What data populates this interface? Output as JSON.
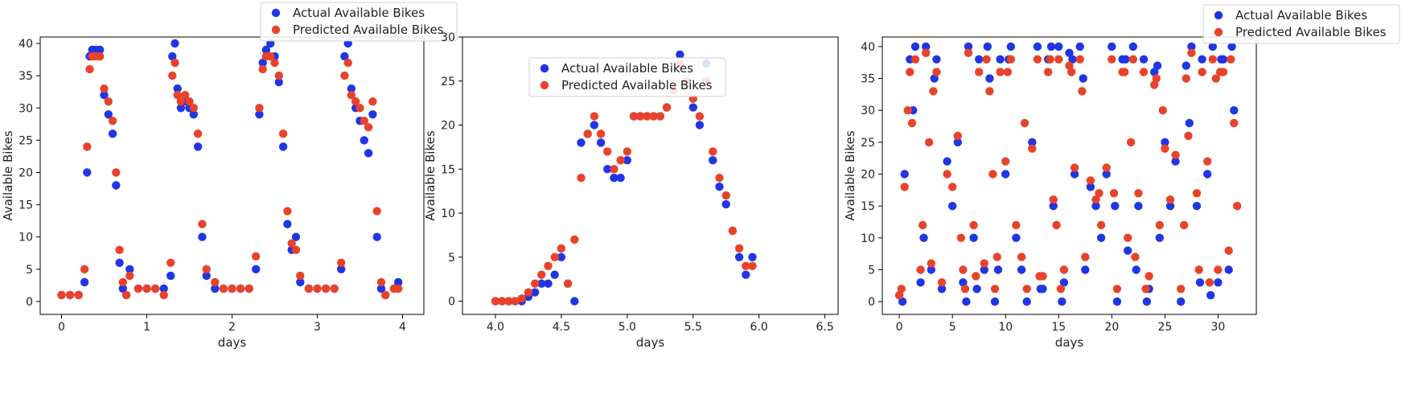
{
  "colors": {
    "actual": "#1f35e6",
    "predicted": "#e8432a"
  },
  "chart_data": [
    {
      "type": "scatter",
      "xlabel": "days",
      "ylabel": "Available Bikes",
      "xlim": [
        -0.25,
        4.25
      ],
      "ylim": [
        -2,
        41
      ],
      "xticks": [
        0,
        1,
        2,
        3,
        4
      ],
      "yticks": [
        0,
        5,
        10,
        15,
        20,
        25,
        30,
        35,
        40
      ],
      "legend": {
        "placement": "top-right-outside",
        "entries": [
          "Actual Available Bikes",
          "Predicted Available Bikes"
        ]
      },
      "series": [
        {
          "name": "Actual Available Bikes",
          "x": [
            0.0,
            0.1,
            0.2,
            0.27,
            0.3,
            0.33,
            0.36,
            0.4,
            0.45,
            0.5,
            0.55,
            0.6,
            0.64,
            0.68,
            0.72,
            0.76,
            0.8,
            0.9,
            1.0,
            1.1,
            1.2,
            1.28,
            1.3,
            1.33,
            1.36,
            1.4,
            1.45,
            1.5,
            1.55,
            1.6,
            1.65,
            1.7,
            1.8,
            1.9,
            2.0,
            2.1,
            2.2,
            2.28,
            2.32,
            2.36,
            2.4,
            2.45,
            2.5,
            2.55,
            2.6,
            2.65,
            2.7,
            2.75,
            2.8,
            2.9,
            3.0,
            3.1,
            3.2,
            3.28,
            3.32,
            3.36,
            3.4,
            3.45,
            3.5,
            3.55,
            3.6,
            3.65,
            3.7,
            3.75,
            3.8,
            3.9,
            3.95
          ],
          "y": [
            1,
            1,
            1,
            3,
            20,
            38,
            39,
            39,
            39,
            32,
            29,
            26,
            18,
            6,
            2,
            1,
            5,
            2,
            2,
            2,
            2,
            4,
            38,
            40,
            33,
            30,
            31,
            30,
            29,
            24,
            10,
            4,
            2,
            2,
            2,
            2,
            2,
            5,
            29,
            37,
            39,
            40,
            38,
            34,
            24,
            12,
            8,
            10,
            3,
            2,
            2,
            2,
            2,
            5,
            38,
            40,
            33,
            30,
            28,
            25,
            23,
            29,
            10,
            2,
            1,
            2,
            3
          ]
        },
        {
          "name": "Predicted Available Bikes",
          "x": [
            0.0,
            0.1,
            0.2,
            0.27,
            0.3,
            0.33,
            0.36,
            0.4,
            0.45,
            0.5,
            0.55,
            0.6,
            0.64,
            0.68,
            0.72,
            0.76,
            0.8,
            0.9,
            1.0,
            1.1,
            1.2,
            1.28,
            1.3,
            1.33,
            1.36,
            1.4,
            1.45,
            1.5,
            1.55,
            1.6,
            1.65,
            1.7,
            1.8,
            1.9,
            2.0,
            2.1,
            2.2,
            2.28,
            2.32,
            2.36,
            2.4,
            2.45,
            2.5,
            2.55,
            2.6,
            2.65,
            2.7,
            2.75,
            2.8,
            2.9,
            3.0,
            3.1,
            3.2,
            3.28,
            3.32,
            3.36,
            3.4,
            3.45,
            3.5,
            3.55,
            3.6,
            3.65,
            3.7,
            3.75,
            3.8,
            3.9,
            3.95
          ],
          "y": [
            1,
            1,
            1,
            5,
            24,
            36,
            38,
            38,
            38,
            33,
            31,
            28,
            20,
            8,
            3,
            1,
            4,
            2,
            2,
            2,
            1,
            6,
            35,
            37,
            32,
            31,
            32,
            31,
            30,
            26,
            12,
            5,
            3,
            2,
            2,
            2,
            2,
            7,
            30,
            36,
            38,
            38,
            37,
            35,
            26,
            14,
            9,
            8,
            4,
            2,
            2,
            2,
            2,
            6,
            35,
            37,
            32,
            31,
            30,
            28,
            27,
            31,
            14,
            3,
            1,
            2,
            2
          ]
        }
      ]
    },
    {
      "type": "scatter",
      "xlabel": "days",
      "ylabel": "Available Bikes",
      "xlim": [
        3.75,
        6.6
      ],
      "ylim": [
        -1.5,
        30
      ],
      "xticks": [
        4.0,
        4.5,
        5.0,
        5.5,
        6.0,
        6.5
      ],
      "yticks": [
        0,
        5,
        10,
        15,
        20,
        25,
        30
      ],
      "legend": {
        "placement": "top-left",
        "entries": [
          "Actual Available Bikes",
          "Predicted Available Bikes"
        ]
      },
      "series": [
        {
          "name": "Actual Available Bikes",
          "x": [
            4.0,
            4.05,
            4.1,
            4.15,
            4.2,
            4.25,
            4.3,
            4.35,
            4.4,
            4.45,
            4.5,
            4.55,
            4.6,
            4.65,
            4.7,
            4.75,
            4.8,
            4.85,
            4.9,
            4.95,
            5.0,
            5.05,
            5.1,
            5.15,
            5.2,
            5.25,
            5.3,
            5.35,
            5.4,
            5.45,
            5.5,
            5.55,
            5.6,
            5.65,
            5.7,
            5.75,
            5.8,
            5.85,
            5.9,
            5.95
          ],
          "y": [
            0,
            0,
            0,
            0,
            0,
            0.5,
            1,
            2,
            2,
            3,
            5,
            2,
            0,
            18,
            19,
            20,
            18,
            15,
            14,
            14,
            16,
            21,
            21,
            21,
            21,
            21,
            22,
            24,
            28,
            25,
            22,
            20,
            27,
            16,
            13,
            11,
            8,
            5,
            3,
            5
          ]
        },
        {
          "name": "Predicted Available Bikes",
          "x": [
            4.0,
            4.05,
            4.1,
            4.15,
            4.2,
            4.25,
            4.3,
            4.35,
            4.4,
            4.45,
            4.5,
            4.55,
            4.6,
            4.65,
            4.7,
            4.75,
            4.8,
            4.85,
            4.9,
            4.95,
            5.0,
            5.05,
            5.1,
            5.15,
            5.2,
            5.25,
            5.3,
            5.35,
            5.4,
            5.45,
            5.5,
            5.55,
            5.6,
            5.65,
            5.7,
            5.75,
            5.8,
            5.85,
            5.9,
            5.95
          ],
          "y": [
            0,
            0,
            0,
            0,
            0.3,
            1,
            2,
            3,
            4,
            5,
            6,
            2,
            7,
            14,
            19,
            21,
            19,
            17,
            15,
            16,
            17,
            21,
            21,
            21,
            21,
            21,
            22,
            24,
            27,
            25,
            23,
            21,
            25,
            17,
            14,
            12,
            8,
            6,
            4,
            4
          ]
        }
      ]
    },
    {
      "type": "scatter",
      "xlabel": "days",
      "ylabel": "Available Bikes",
      "xlim": [
        -1.6,
        33.6
      ],
      "ylim": [
        -2,
        41.5
      ],
      "xticks": [
        0,
        5,
        10,
        15,
        20,
        25,
        30
      ],
      "yticks": [
        0,
        5,
        10,
        15,
        20,
        25,
        30,
        35,
        40
      ],
      "legend": {
        "placement": "top-right-outside",
        "entries": [
          "Actual Available Bikes",
          "Predicted Available Bikes"
        ]
      },
      "series": [
        {
          "name": "Actual Available Bikes",
          "x": [
            0,
            0.5,
            1,
            1.5,
            2,
            2.5,
            3,
            3.5,
            4,
            4.5,
            5,
            5.5,
            6,
            6.5,
            7,
            7.5,
            8,
            8.5,
            9,
            9.5,
            10,
            10.5,
            11,
            11.5,
            12,
            12.5,
            13,
            13.5,
            14,
            14.5,
            15,
            15.5,
            16,
            16.5,
            17,
            17.5,
            18,
            18.5,
            19,
            19.5,
            20,
            20.5,
            21,
            21.5,
            22,
            22.5,
            23,
            23.5,
            24,
            24.5,
            25,
            25.5,
            26,
            26.5,
            27,
            27.5,
            28,
            28.5,
            29,
            29.5,
            30,
            30.5,
            31,
            31.5,
            0.3,
            1.3,
            2.3,
            3.3,
            6.3,
            7.3,
            8.3,
            9.3,
            10.3,
            13.3,
            14.3,
            15.3,
            16.3,
            17.3,
            20.3,
            21.3,
            22.3,
            23.3,
            24.3,
            27.3,
            28.3,
            29.3,
            30.3,
            31.3
          ],
          "y": [
            1,
            20,
            38,
            40,
            3,
            40,
            5,
            38,
            2,
            22,
            15,
            25,
            3,
            40,
            10,
            38,
            5,
            35,
            0,
            38,
            20,
            40,
            10,
            5,
            0,
            25,
            40,
            2,
            38,
            15,
            40,
            3,
            39,
            20,
            40,
            5,
            18,
            15,
            10,
            20,
            40,
            0,
            38,
            8,
            40,
            15,
            38,
            2,
            36,
            10,
            25,
            15,
            22,
            0,
            37,
            40,
            15,
            38,
            20,
            40,
            3,
            38,
            5,
            30,
            0,
            30,
            10,
            35,
            0,
            2,
            40,
            5,
            38,
            2,
            40,
            0,
            38,
            35,
            15,
            38,
            5,
            0,
            37,
            28,
            3,
            1,
            38,
            40
          ]
        },
        {
          "name": "Predicted Available Bikes",
          "x": [
            0,
            0.5,
            1,
            1.5,
            2,
            2.5,
            3,
            3.5,
            4,
            4.5,
            5,
            5.5,
            6,
            6.5,
            7,
            7.5,
            8,
            8.5,
            9,
            9.5,
            10,
            10.5,
            11,
            11.5,
            12,
            12.5,
            13,
            13.5,
            14,
            14.5,
            15,
            15.5,
            16,
            16.5,
            17,
            17.5,
            18,
            18.5,
            19,
            19.5,
            20,
            20.5,
            21,
            21.5,
            22,
            22.5,
            23,
            23.5,
            24,
            24.5,
            25,
            25.5,
            26,
            26.5,
            27,
            27.5,
            28,
            28.5,
            29,
            29.5,
            30,
            30.5,
            31,
            31.5,
            0.2,
            1.2,
            2.2,
            3.2,
            6.2,
            7.2,
            8.2,
            9.2,
            10.2,
            13.2,
            14.2,
            15.2,
            16.2,
            17.2,
            20.2,
            21.2,
            22.2,
            23.2,
            24.2,
            27.2,
            28.2,
            29.2,
            30.2,
            31.2,
            0.8,
            2.8,
            5.8,
            8.8,
            11.8,
            14.8,
            18.8,
            21.8,
            24.8,
            26.8,
            29.8,
            31.8
          ],
          "y": [
            1,
            18,
            36,
            38,
            5,
            39,
            6,
            36,
            3,
            20,
            18,
            26,
            5,
            39,
            12,
            36,
            6,
            33,
            2,
            36,
            22,
            38,
            12,
            7,
            2,
            24,
            38,
            4,
            36,
            16,
            38,
            5,
            37,
            21,
            38,
            7,
            19,
            16,
            12,
            21,
            38,
            2,
            36,
            10,
            38,
            17,
            36,
            4,
            34,
            12,
            24,
            16,
            23,
            2,
            35,
            39,
            17,
            36,
            22,
            38,
            5,
            36,
            8,
            28,
            2,
            28,
            12,
            33,
            2,
            4,
            38,
            7,
            36,
            4,
            38,
            2,
            36,
            33,
            17,
            36,
            7,
            2,
            35,
            26,
            5,
            3,
            36,
            38,
            30,
            25,
            10,
            20,
            28,
            12,
            17,
            25,
            30,
            12,
            35,
            15
          ]
        }
      ]
    }
  ]
}
